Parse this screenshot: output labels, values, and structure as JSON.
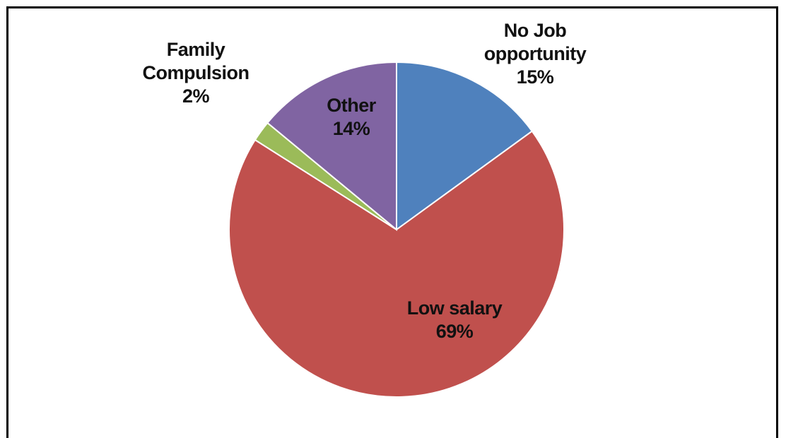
{
  "chart_data": {
    "type": "pie",
    "categories": [
      "No Job opportunity",
      "Low salary",
      "Family Compulsion",
      "Other"
    ],
    "values": [
      15,
      69,
      2,
      14
    ],
    "value_labels": [
      "15%",
      "69%",
      "2%",
      "14%"
    ],
    "colors": [
      "#4f81bd",
      "#c0504d",
      "#9bbb59",
      "#8064a2"
    ]
  }
}
